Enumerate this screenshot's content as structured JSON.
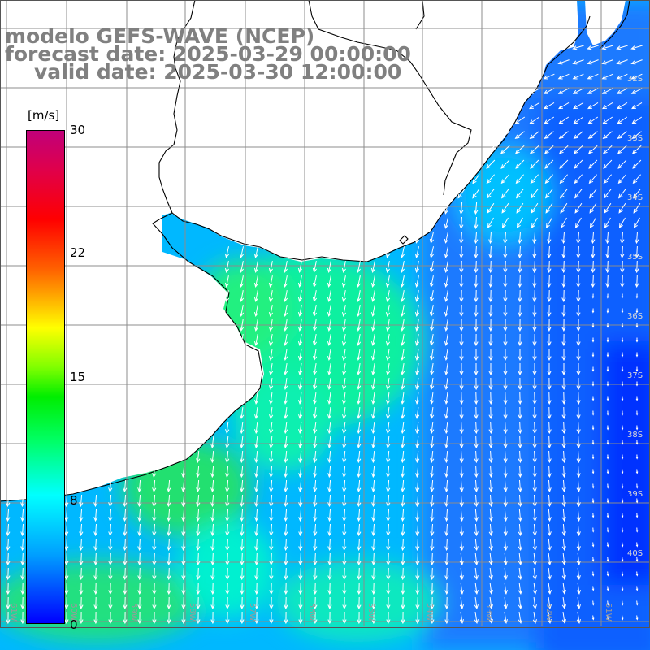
{
  "title": {
    "line1": "modelo GEFS-WAVE (NCEP)",
    "line2": "forecast date: 2025-03-29 00:00:00",
    "line3": "valid date: 2025-03-30 12:00:00"
  },
  "colorbar": {
    "unit": "[m/s]",
    "ticks": [
      {
        "label": "30",
        "value": 30
      },
      {
        "label": "22",
        "value": 22
      },
      {
        "label": "15",
        "value": 15
      },
      {
        "label": "8",
        "value": 8
      },
      {
        "label": "0",
        "value": 0
      }
    ],
    "colors": [
      "#0000ff",
      "#00a0ff",
      "#00ffff",
      "#00ff66",
      "#00ee00",
      "#80ff00",
      "#ffff00",
      "#ffa000",
      "#ff6000",
      "#ff0000",
      "#c0007a"
    ]
  },
  "lat_labels": [
    "32S",
    "33S",
    "34S",
    "35S",
    "36S",
    "37S",
    "38S",
    "39S",
    "40S"
  ],
  "lon_labels": [
    "61W",
    "60W",
    "59W",
    "58W",
    "57W",
    "56W",
    "55W",
    "54W",
    "53W",
    "52W",
    "51W"
  ],
  "colors": {
    "land": "#ffffff",
    "coast": "#000000",
    "grid": "#8c8c8c",
    "arrows": "#ffffff",
    "label_text": "#808080"
  }
}
